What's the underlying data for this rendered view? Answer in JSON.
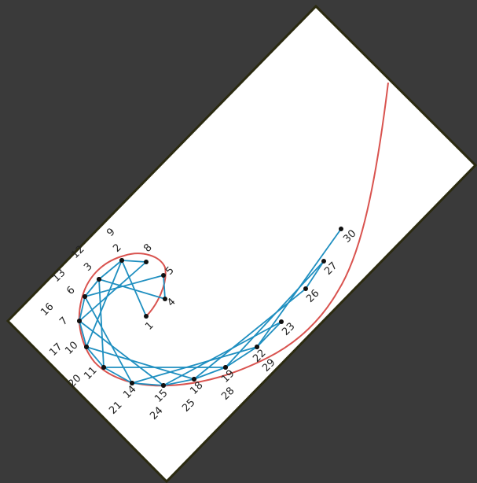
{
  "diagram": {
    "colors": {
      "background": "#3a3a3a",
      "card": "#ffffff",
      "card_border": "#2b2a10",
      "curve": "#d9534f",
      "strings": "#1f8fc0",
      "dots": "#111111"
    },
    "points": [
      {
        "id": "p1",
        "labels": [
          "1"
        ]
      },
      {
        "id": "p2",
        "labels": [
          "2"
        ]
      },
      {
        "id": "p3",
        "labels": [
          "3"
        ]
      },
      {
        "id": "p4",
        "labels": [
          "4"
        ]
      },
      {
        "id": "p5",
        "labels": [
          "5"
        ]
      },
      {
        "id": "p6",
        "labels": [
          "6"
        ]
      },
      {
        "id": "p7",
        "labels": [
          "7"
        ]
      },
      {
        "id": "p8",
        "labels": [
          "8"
        ]
      },
      {
        "id": "p9",
        "labels": [
          "9"
        ]
      },
      {
        "id": "p10",
        "labels": [
          "10"
        ]
      },
      {
        "id": "p11",
        "labels": [
          "11"
        ]
      },
      {
        "id": "p12",
        "labels": [
          "12"
        ]
      },
      {
        "id": "p13",
        "labels": [
          "13"
        ]
      },
      {
        "id": "p14",
        "labels": [
          "14"
        ]
      },
      {
        "id": "p15",
        "labels": [
          "15"
        ]
      },
      {
        "id": "p16",
        "labels": [
          "16"
        ]
      },
      {
        "id": "p17",
        "labels": [
          "17"
        ]
      },
      {
        "id": "p18",
        "labels": [
          "18"
        ]
      },
      {
        "id": "p19",
        "labels": [
          "19"
        ]
      },
      {
        "id": "p20",
        "labels": [
          "20"
        ]
      },
      {
        "id": "p21",
        "labels": [
          "21"
        ]
      },
      {
        "id": "p22",
        "labels": [
          "22"
        ]
      },
      {
        "id": "p23",
        "labels": [
          "23"
        ]
      },
      {
        "id": "p24",
        "labels": [
          "24"
        ]
      },
      {
        "id": "p25",
        "labels": [
          "25"
        ]
      },
      {
        "id": "p26",
        "labels": [
          "26"
        ]
      },
      {
        "id": "p27",
        "labels": [
          "27"
        ]
      },
      {
        "id": "p28",
        "labels": [
          "28"
        ]
      },
      {
        "id": "p29",
        "labels": [
          "29"
        ]
      },
      {
        "id": "p30",
        "labels": [
          "30"
        ]
      }
    ]
  }
}
